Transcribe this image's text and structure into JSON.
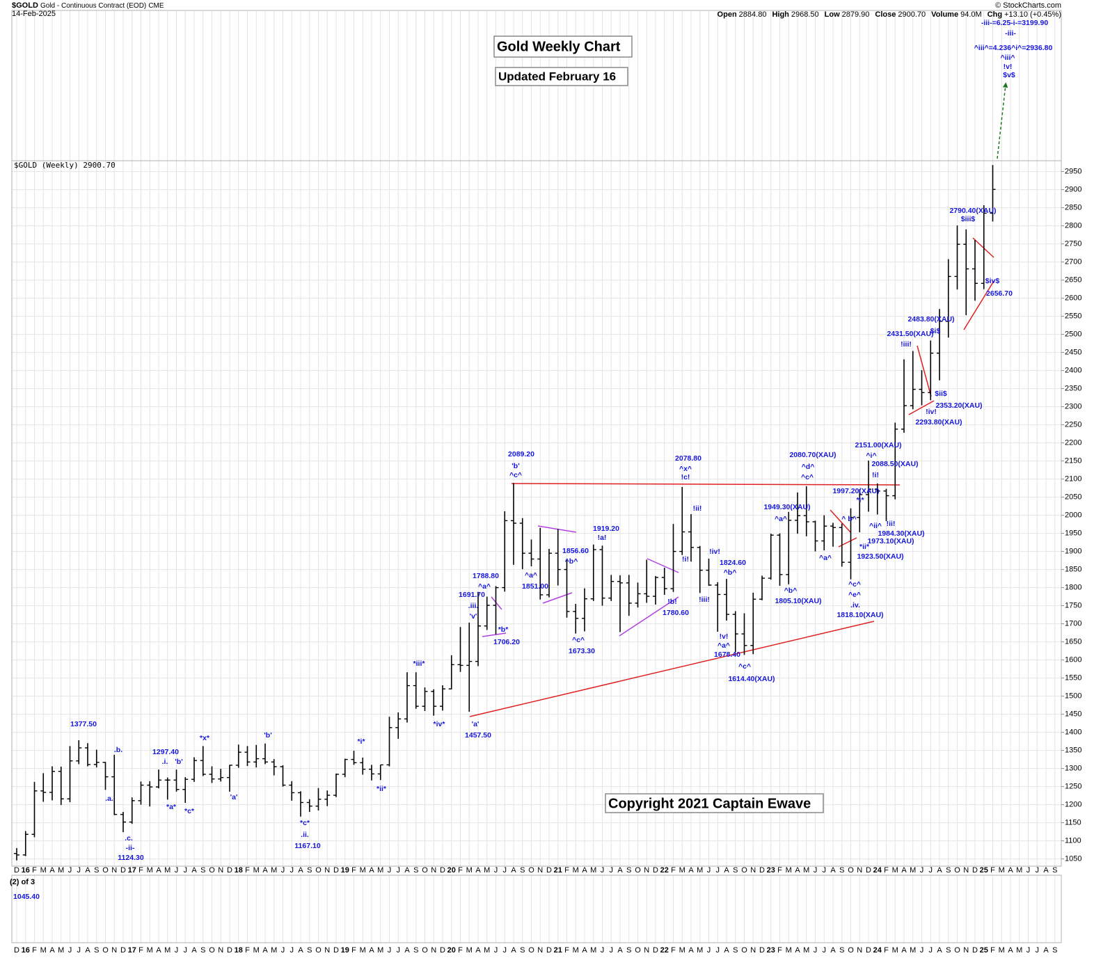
{
  "chart_data": {
    "type": "ohlc",
    "title": "Gold Weekly Chart",
    "subtitle": "Updated February 16",
    "copyright": "Copyright 2021 Captain Ewave",
    "header": {
      "symbol": "$GOLD",
      "description": "Gold - Continuous Contract (EOD)",
      "exchange": "CME",
      "date": "14-Feb-2025",
      "source": "© StockCharts.com",
      "quote": [
        {
          "label": "Open",
          "value": "2884.80"
        },
        {
          "label": "High",
          "value": "2968.50"
        },
        {
          "label": "Low",
          "value": "2879.90"
        },
        {
          "label": "Close",
          "value": "2900.70"
        },
        {
          "label": "Volume",
          "value": "94.0M"
        },
        {
          "label": "Chg",
          "value": "+13.10 (+0.45%)"
        }
      ]
    },
    "legend_label": "$GOLD (Weekly)",
    "legend_value": "2900.70",
    "categories": [
      "D",
      "16",
      "F",
      "M",
      "A",
      "M",
      "J",
      "J",
      "A",
      "S",
      "O",
      "N",
      "D",
      "17",
      "F",
      "M",
      "A",
      "M",
      "J",
      "J",
      "A",
      "S",
      "O",
      "N",
      "D",
      "18",
      "F",
      "M",
      "A",
      "M",
      "J",
      "J",
      "A",
      "S",
      "O",
      "N",
      "D",
      "19",
      "F",
      "M",
      "A",
      "M",
      "J",
      "J",
      "A",
      "S",
      "O",
      "N",
      "D",
      "20",
      "F",
      "M",
      "A",
      "M",
      "J",
      "J",
      "A",
      "S",
      "O",
      "N",
      "D",
      "21",
      "F",
      "M",
      "A",
      "M",
      "J",
      "J",
      "A",
      "S",
      "O",
      "N",
      "D",
      "22",
      "F",
      "M",
      "A",
      "M",
      "J",
      "J",
      "A",
      "S",
      "O",
      "N",
      "D",
      "23",
      "F",
      "M",
      "A",
      "M",
      "J",
      "J",
      "A",
      "S",
      "O",
      "N",
      "D",
      "24",
      "F",
      "M",
      "A",
      "M",
      "J",
      "J",
      "A",
      "S",
      "O",
      "N",
      "D",
      "25",
      "F",
      "M",
      "A",
      "M",
      "J",
      "J",
      "A",
      "S"
    ],
    "series": [
      {
        "name": "$GOLD",
        "color": "#000000",
        "open": [
          1065,
          1061,
          1118,
          1238,
          1234,
          1292,
          1216,
          1321,
          1357,
          1311,
          1317,
          1277,
          1173,
          1152,
          1211,
          1254,
          1249,
          1268,
          1268,
          1242,
          1270,
          1322,
          1284,
          1271,
          1275,
          1309,
          1345,
          1318,
          1327,
          1318,
          1305,
          1254,
          1233,
          1206,
          1196,
          1215,
          1226,
          1284,
          1325,
          1316,
          1298,
          1285,
          1310,
          1413,
          1437,
          1529,
          1472,
          1513,
          1472,
          1520,
          1587,
          1585,
          1596,
          1694,
          1751,
          1800,
          1985,
          1978,
          1895,
          1879,
          1780,
          1895,
          1850,
          1734,
          1715,
          1769,
          1905,
          1771,
          1817,
          1813,
          1757,
          1783,
          1776,
          1828,
          1797,
          1900,
          1954,
          1911,
          1848,
          1807,
          1781,
          1726,
          1672,
          1640,
          1768,
          1826,
          1945,
          1836,
          1986,
          1999,
          1982,
          1929,
          1970,
          1966,
          1870,
          1994,
          2057,
          2072,
          2067,
          2054,
          2238,
          2303,
          2348,
          2339,
          2448,
          2536,
          2660,
          2749,
          2681,
          2641,
          2835,
          null,
          null,
          null,
          null,
          null,
          null,
          null
        ],
        "high": [
          1080,
          1127,
          1263,
          1287,
          1306,
          1305,
          1362,
          1378,
          1370,
          1352,
          1318,
          1338,
          1180,
          1220,
          1264,
          1265,
          1297,
          1275,
          1297,
          1276,
          1331,
          1362,
          1306,
          1299,
          1310,
          1366,
          1362,
          1365,
          1369,
          1326,
          1309,
          1265,
          1237,
          1215,
          1246,
          1239,
          1286,
          1327,
          1349,
          1330,
          1310,
          1310,
          1443,
          1455,
          1566,
          1566,
          1524,
          1519,
          1530,
          1613,
          1691,
          1703,
          1788,
          1775,
          1804,
          2011,
          2089,
          1992,
          1933,
          1965,
          1907,
          1962,
          1876,
          1755,
          1798,
          1919,
          1916,
          1835,
          1834,
          1835,
          1814,
          1877,
          1832,
          1855,
          1976,
          2078,
          2003,
          1915,
          1880,
          1815,
          1824,
          1735,
          1729,
          1786,
          1833,
          1949,
          1950,
          2009,
          2063,
          2080,
          1985,
          2000,
          1979,
          1977,
          2019,
          2072,
          2151,
          2088,
          2073,
          2256,
          2431,
          2454,
          2401,
          2483,
          2570,
          2708,
          2801,
          2790,
          2761,
          2857,
          2968,
          null,
          null,
          null,
          null,
          null,
          null,
          null
        ],
        "low": [
          1046,
          1058,
          1110,
          1208,
          1212,
          1199,
          1207,
          1312,
          1306,
          1303,
          1241,
          1171,
          1124,
          1147,
          1200,
          1195,
          1245,
          1214,
          1236,
          1205,
          1263,
          1279,
          1260,
          1264,
          1236,
          1302,
          1307,
          1303,
          1312,
          1281,
          1250,
          1211,
          1167,
          1180,
          1184,
          1196,
          1221,
          1276,
          1310,
          1283,
          1267,
          1268,
          1306,
          1382,
          1427,
          1465,
          1459,
          1446,
          1460,
          1519,
          1567,
          1457,
          1583,
          1683,
          1671,
          1789,
          1863,
          1851,
          1859,
          1767,
          1773,
          1806,
          1717,
          1673,
          1679,
          1763,
          1750,
          1763,
          1677,
          1722,
          1745,
          1758,
          1753,
          1780,
          1788,
          1890,
          1872,
          1785,
          1805,
          1678,
          1709,
          1622,
          1614,
          1616,
          1765,
          1822,
          1805,
          1809,
          1949,
          1942,
          1900,
          1903,
          1913,
          1858,
          1823,
          1953,
          2010,
          2002,
          1984,
          2044,
          2228,
          2293,
          2304,
          2318,
          2373,
          2491,
          2624,
          2553,
          2593,
          2625,
          2812,
          null,
          null,
          null,
          null,
          null,
          null,
          null
        ],
        "close": [
          1061,
          1118,
          1238,
          1234,
          1292,
          1216,
          1321,
          1357,
          1311,
          1317,
          1277,
          1173,
          1152,
          1211,
          1254,
          1249,
          1268,
          1268,
          1242,
          1270,
          1322,
          1284,
          1271,
          1275,
          1309,
          1345,
          1318,
          1327,
          1318,
          1305,
          1254,
          1233,
          1206,
          1196,
          1215,
          1226,
          1284,
          1325,
          1316,
          1298,
          1285,
          1310,
          1413,
          1437,
          1529,
          1472,
          1513,
          1472,
          1520,
          1587,
          1585,
          1596,
          1694,
          1751,
          1800,
          1985,
          1978,
          1895,
          1879,
          1780,
          1895,
          1850,
          1734,
          1715,
          1769,
          1905,
          1771,
          1817,
          1813,
          1757,
          1783,
          1776,
          1828,
          1797,
          1900,
          1954,
          1911,
          1848,
          1807,
          1781,
          1726,
          1672,
          1640,
          1768,
          1826,
          1945,
          1836,
          1986,
          1999,
          1982,
          1929,
          1970,
          1966,
          1870,
          1994,
          2057,
          2072,
          2067,
          2054,
          2238,
          2303,
          2348,
          2339,
          2448,
          2536,
          2660,
          2749,
          2681,
          2641,
          2835,
          2900.7,
          null,
          null,
          null,
          null,
          null,
          null,
          null
        ]
      }
    ],
    "ylim": [
      1030,
      2980
    ],
    "yticks": [
      1050,
      1100,
      1150,
      1200,
      1250,
      1300,
      1350,
      1400,
      1450,
      1500,
      1550,
      1600,
      1650,
      1700,
      1750,
      1800,
      1850,
      1900,
      1950,
      2000,
      2050,
      2100,
      2150,
      2200,
      2250,
      2300,
      2350,
      2400,
      2450,
      2500,
      2550,
      2600,
      2650,
      2700,
      2750,
      2800,
      2850,
      2900,
      2950
    ],
    "grid": true,
    "annotations": [
      "-iii-=6.25-i-=3199.90",
      "-iii-",
      "^iii^=4.236^i^=2936.80",
      "^iii^",
      "!v!",
      "$v$",
      "1377.50",
      ".b.",
      ".a.",
      ".c.",
      "-ii-",
      "1124.30",
      "1297.40",
      ".i.",
      "'b'",
      "*a*",
      "*c*",
      "*x*",
      "'a'",
      "'b'",
      "*c*",
      ".ii.",
      "1167.10",
      "*i*",
      "*ii*",
      "*iii*",
      "*iv*",
      "'a'",
      "1457.50",
      "1691.70",
      ".iii.",
      "'v'",
      "1788.80",
      "^a^",
      "*b*",
      "1706.20",
      "2089.20",
      "'b'",
      "^c^",
      "^a^",
      "1851.00",
      "1856.60",
      "^b^",
      "^c^",
      "1673.30",
      "1919.20",
      "!a!",
      "!b!",
      "1780.60",
      "2078.80",
      "^x^",
      "!c!",
      "!ii!",
      "!i!",
      "!iv!",
      "1824.60",
      "^b^",
      "!iii!",
      "!v!",
      "^a^",
      "1678.40",
      "^c^",
      "1614.40(XAU)",
      "2080.70(XAU)",
      "^d^",
      "^c^",
      "1949.30(XAU)",
      "^a^",
      "^b^",
      "1805.10(XAU)",
      "^a^",
      "^ b^",
      "1997.20(XAU)",
      "*i*",
      "*ii*",
      "^c^",
      "^e^",
      ".iv.",
      "1818.10(XAU)",
      "1923.50(XAU)",
      "1973.10(XAU)",
      "1984.30(XAU)",
      "^ii^",
      "!ii!",
      "2151.00(XAU)",
      "^i^",
      "!i!",
      "2088.50(XAU)",
      "2431.50(XAU)",
      "!iii!",
      "2483.80(XAU)",
      "$i$",
      "$ii$",
      "!iv!",
      "2353.20(XAU)",
      "2293.80(XAU)",
      "2790.40(XAU)",
      "$iii$",
      "$iv$",
      "2656.70"
    ],
    "lower_panel": [
      "(2) of 3",
      "1045.40"
    ]
  }
}
